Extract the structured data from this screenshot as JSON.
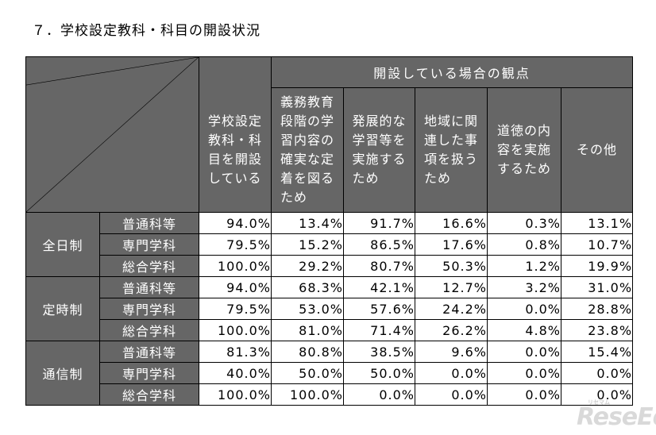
{
  "title": "７．学校設定教科・科目の開設状況",
  "perspective_header": "開設している場合の観点",
  "columns": [
    "学校設定\n教科・科\n目を開設\nしている",
    "義務教育\n段階の学\n習内容の\n確実な定\n着を図る\nため",
    "発展的な\n学習等を\n実施する\nため",
    "地域に関\n連した事\n項を扱う\nため",
    "道徳の内\n容を実施\nするため",
    "その他"
  ],
  "groups": [
    {
      "name": "全日制",
      "rows": [
        {
          "category": "普通科等",
          "values": [
            "94.0%",
            "13.4%",
            "91.7%",
            "16.6%",
            "0.3%",
            "13.1%"
          ]
        },
        {
          "category": "専門学科",
          "values": [
            "79.5%",
            "15.2%",
            "86.5%",
            "17.6%",
            "0.8%",
            "10.7%"
          ]
        },
        {
          "category": "総合学科",
          "values": [
            "100.0%",
            "29.2%",
            "80.7%",
            "50.3%",
            "1.2%",
            "19.9%"
          ]
        }
      ]
    },
    {
      "name": "定時制",
      "rows": [
        {
          "category": "普通科等",
          "values": [
            "94.0%",
            "68.3%",
            "42.1%",
            "12.7%",
            "3.2%",
            "31.0%"
          ]
        },
        {
          "category": "専門学科",
          "values": [
            "79.5%",
            "53.0%",
            "57.6%",
            "24.2%",
            "0.0%",
            "28.8%"
          ]
        },
        {
          "category": "総合学科",
          "values": [
            "100.0%",
            "81.0%",
            "71.4%",
            "26.2%",
            "4.8%",
            "23.8%"
          ]
        }
      ]
    },
    {
      "name": "通信制",
      "rows": [
        {
          "category": "普通科等",
          "values": [
            "81.3%",
            "80.8%",
            "38.5%",
            "9.6%",
            "0.0%",
            "15.4%"
          ]
        },
        {
          "category": "専門学科",
          "values": [
            "40.0%",
            "50.0%",
            "50.0%",
            "0.0%",
            "0.0%",
            "0.0%"
          ]
        },
        {
          "category": "総合学科",
          "values": [
            "100.0%",
            "100.0%",
            "0.0%",
            "0.0%",
            "0.0%",
            "0.0%"
          ]
        }
      ]
    }
  ],
  "watermark": {
    "brand": "ReseEd",
    "kana": "リセマム"
  },
  "colors": {
    "header_bg": "#666666",
    "header_text": "#ffffff",
    "cell_bg": "#ffffff"
  }
}
